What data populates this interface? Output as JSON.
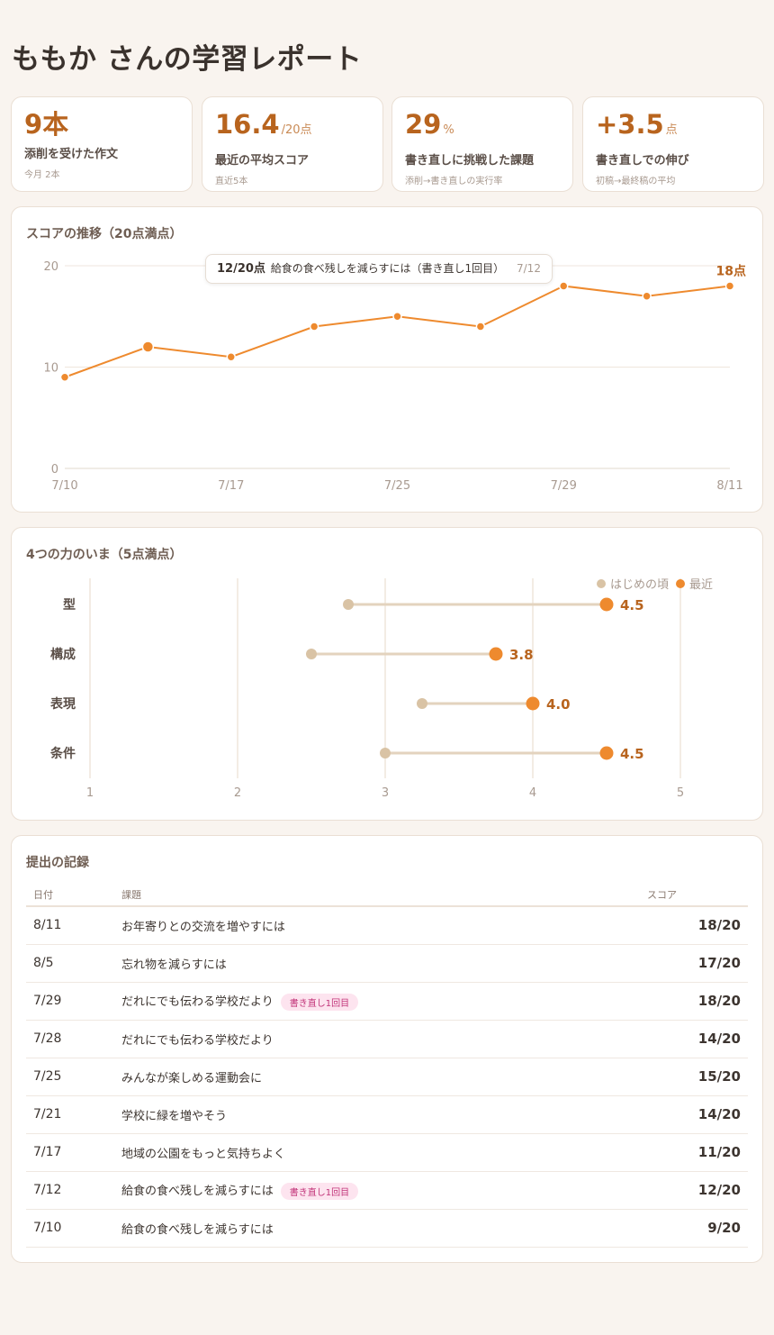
{
  "page_title": "ももか さんの学習レポート",
  "stats": [
    {
      "value": "9",
      "unit": "本",
      "label": "添削を受けた作文",
      "note": "今月 2本"
    },
    {
      "value": "16.4",
      "unit": "/20点",
      "label": "最近の平均スコア",
      "note": "直近5本"
    },
    {
      "value": "29",
      "unit": "%",
      "label": "書き直しに挑戦した課題",
      "note": "添削→書き直しの実行率"
    },
    {
      "value": "+3.5",
      "unit": "点",
      "label": "書き直しでの伸び",
      "note": "初稿→最終稿の平均"
    }
  ],
  "score_chart": {
    "title": "スコアの推移（20点満点）",
    "tooltip": {
      "score": "12/20点",
      "task": "給食の食べ残しを減らすには（書き直し1回目）",
      "date": "7/12"
    },
    "last_label": "18点"
  },
  "skills_chart": {
    "title": "4つの力のいま（5点満点）",
    "legend_start": "はじめの頃",
    "legend_recent": "最近"
  },
  "chart_data": [
    {
      "type": "line",
      "title": "スコアの推移（20点満点）",
      "x": [
        "7/10",
        "7/12",
        "7/17",
        "7/21",
        "7/25",
        "7/28",
        "7/29",
        "8/5",
        "8/11"
      ],
      "x_ticks": [
        "7/10",
        "7/17",
        "7/25",
        "7/29",
        "8/11"
      ],
      "values": [
        9,
        12,
        11,
        14,
        15,
        14,
        18,
        17,
        18
      ],
      "y_ticks": [
        "0",
        "10",
        "20"
      ],
      "ylim": [
        0,
        20
      ],
      "highlight_index": 1,
      "grid": true,
      "color": "#ee8a2e"
    },
    {
      "type": "dumbbell",
      "title": "4つの力のいま（5点満点）",
      "categories": [
        "型",
        "構成",
        "表現",
        "条件"
      ],
      "series": [
        {
          "name": "はじめの頃",
          "values": [
            2.75,
            2.5,
            3.25,
            3.0
          ],
          "color": "#d9c3a5"
        },
        {
          "name": "最近",
          "values": [
            4.5,
            3.75,
            4.0,
            4.5
          ],
          "color": "#ee8a2e"
        }
      ],
      "value_labels": [
        "4.5",
        "3.8",
        "4.0",
        "4.5"
      ],
      "x_ticks": [
        "1",
        "2",
        "3",
        "4",
        "5"
      ],
      "xlim": [
        1,
        5
      ],
      "legend": "top-right"
    }
  ],
  "history": {
    "title": "提出の記録",
    "headers": {
      "date": "日付",
      "task": "課題",
      "score": "スコア"
    },
    "rows": [
      {
        "date": "8/11",
        "task": "お年寄りとの交流を増やすには",
        "badge": "",
        "score": "18/20"
      },
      {
        "date": "8/5",
        "task": "忘れ物を減らすには",
        "badge": "",
        "score": "17/20"
      },
      {
        "date": "7/29",
        "task": "だれにでも伝わる学校だより",
        "badge": "書き直し1回目",
        "score": "18/20"
      },
      {
        "date": "7/28",
        "task": "だれにでも伝わる学校だより",
        "badge": "",
        "score": "14/20"
      },
      {
        "date": "7/25",
        "task": "みんなが楽しめる運動会に",
        "badge": "",
        "score": "15/20"
      },
      {
        "date": "7/21",
        "task": "学校に緑を増やそう",
        "badge": "",
        "score": "14/20"
      },
      {
        "date": "7/17",
        "task": "地域の公園をもっと気持ちよく",
        "badge": "",
        "score": "11/20"
      },
      {
        "date": "7/12",
        "task": "給食の食べ残しを減らすには",
        "badge": "書き直し1回目",
        "score": "12/20"
      },
      {
        "date": "7/10",
        "task": "給食の食べ残しを減らすには",
        "badge": "",
        "score": "9/20"
      }
    ]
  }
}
